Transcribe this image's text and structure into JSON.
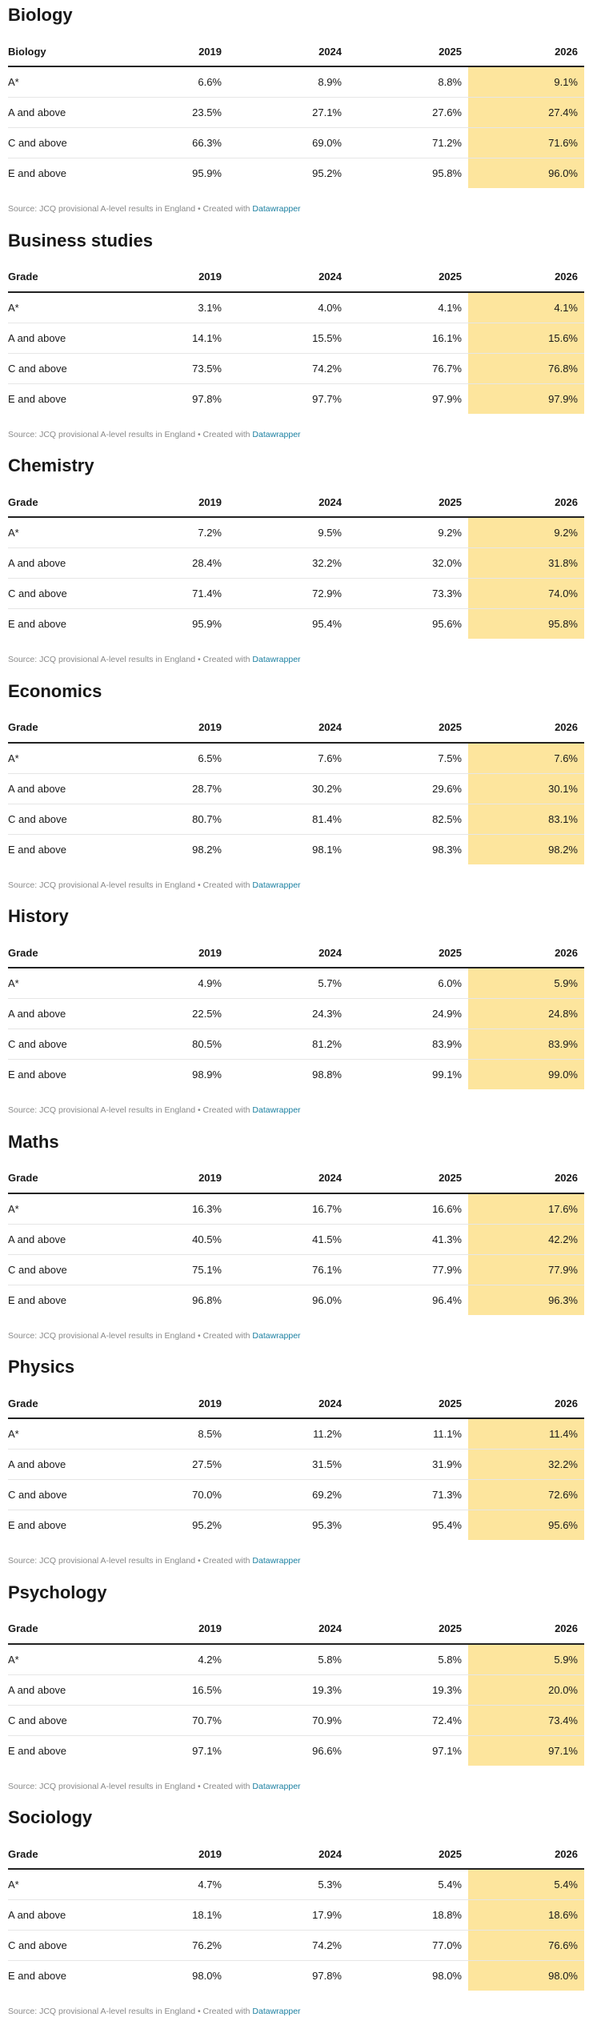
{
  "years": [
    "2019",
    "2024",
    "2025",
    "2026"
  ],
  "highlight_color": "#fde59d",
  "link_color": "#1d81a2",
  "footer": {
    "source": "Source: JCQ provisional A-level results in England",
    "created": "• Created with",
    "link": "Datawrapper"
  },
  "tables": [
    {
      "subject": "Biology",
      "header": "Biology",
      "rows": [
        {
          "grade": "A*",
          "values": [
            "6.6%",
            "8.9%",
            "8.8%",
            "9.1%"
          ]
        },
        {
          "grade": "A and above",
          "values": [
            "23.5%",
            "27.1%",
            "27.6%",
            "27.4%"
          ]
        },
        {
          "grade": "C and above",
          "values": [
            "66.3%",
            "69.0%",
            "71.2%",
            "71.6%"
          ]
        },
        {
          "grade": "E and above",
          "values": [
            "95.9%",
            "95.2%",
            "95.8%",
            "96.0%"
          ]
        }
      ]
    },
    {
      "subject": "Business studies",
      "header": "Grade",
      "rows": [
        {
          "grade": "A*",
          "values": [
            "3.1%",
            "4.0%",
            "4.1%",
            "4.1%"
          ]
        },
        {
          "grade": "A and above",
          "values": [
            "14.1%",
            "15.5%",
            "16.1%",
            "15.6%"
          ]
        },
        {
          "grade": "C and above",
          "values": [
            "73.5%",
            "74.2%",
            "76.7%",
            "76.8%"
          ]
        },
        {
          "grade": "E and above",
          "values": [
            "97.8%",
            "97.7%",
            "97.9%",
            "97.9%"
          ]
        }
      ]
    },
    {
      "subject": "Chemistry",
      "header": "Grade",
      "rows": [
        {
          "grade": "A*",
          "values": [
            "7.2%",
            "9.5%",
            "9.2%",
            "9.2%"
          ]
        },
        {
          "grade": "A and above",
          "values": [
            "28.4%",
            "32.2%",
            "32.0%",
            "31.8%"
          ]
        },
        {
          "grade": "C and above",
          "values": [
            "71.4%",
            "72.9%",
            "73.3%",
            "74.0%"
          ]
        },
        {
          "grade": "E and above",
          "values": [
            "95.9%",
            "95.4%",
            "95.6%",
            "95.8%"
          ]
        }
      ]
    },
    {
      "subject": "Economics",
      "header": "Grade",
      "rows": [
        {
          "grade": "A*",
          "values": [
            "6.5%",
            "7.6%",
            "7.5%",
            "7.6%"
          ]
        },
        {
          "grade": "A and above",
          "values": [
            "28.7%",
            "30.2%",
            "29.6%",
            "30.1%"
          ]
        },
        {
          "grade": "C and above",
          "values": [
            "80.7%",
            "81.4%",
            "82.5%",
            "83.1%"
          ]
        },
        {
          "grade": "E and above",
          "values": [
            "98.2%",
            "98.1%",
            "98.3%",
            "98.2%"
          ]
        }
      ]
    },
    {
      "subject": "History",
      "header": "Grade",
      "rows": [
        {
          "grade": "A*",
          "values": [
            "4.9%",
            "5.7%",
            "6.0%",
            "5.9%"
          ]
        },
        {
          "grade": "A and above",
          "values": [
            "22.5%",
            "24.3%",
            "24.9%",
            "24.8%"
          ]
        },
        {
          "grade": "C and above",
          "values": [
            "80.5%",
            "81.2%",
            "83.9%",
            "83.9%"
          ]
        },
        {
          "grade": "E and above",
          "values": [
            "98.9%",
            "98.8%",
            "99.1%",
            "99.0%"
          ]
        }
      ]
    },
    {
      "subject": "Maths",
      "header": "Grade",
      "rows": [
        {
          "grade": "A*",
          "values": [
            "16.3%",
            "16.7%",
            "16.6%",
            "17.6%"
          ]
        },
        {
          "grade": "A and above",
          "values": [
            "40.5%",
            "41.5%",
            "41.3%",
            "42.2%"
          ]
        },
        {
          "grade": "C and above",
          "values": [
            "75.1%",
            "76.1%",
            "77.9%",
            "77.9%"
          ]
        },
        {
          "grade": "E and above",
          "values": [
            "96.8%",
            "96.0%",
            "96.4%",
            "96.3%"
          ]
        }
      ]
    },
    {
      "subject": "Physics",
      "header": "Grade",
      "rows": [
        {
          "grade": "A*",
          "values": [
            "8.5%",
            "11.2%",
            "11.1%",
            "11.4%"
          ]
        },
        {
          "grade": "A and above",
          "values": [
            "27.5%",
            "31.5%",
            "31.9%",
            "32.2%"
          ]
        },
        {
          "grade": "C and above",
          "values": [
            "70.0%",
            "69.2%",
            "71.3%",
            "72.6%"
          ]
        },
        {
          "grade": "E and above",
          "values": [
            "95.2%",
            "95.3%",
            "95.4%",
            "95.6%"
          ]
        }
      ]
    },
    {
      "subject": "Psychology",
      "header": "Grade",
      "rows": [
        {
          "grade": "A*",
          "values": [
            "4.2%",
            "5.8%",
            "5.8%",
            "5.9%"
          ]
        },
        {
          "grade": "A and above",
          "values": [
            "16.5%",
            "19.3%",
            "19.3%",
            "20.0%"
          ]
        },
        {
          "grade": "C and above",
          "values": [
            "70.7%",
            "70.9%",
            "72.4%",
            "73.4%"
          ]
        },
        {
          "grade": "E and above",
          "values": [
            "97.1%",
            "96.6%",
            "97.1%",
            "97.1%"
          ]
        }
      ]
    },
    {
      "subject": "Sociology",
      "header": "Grade",
      "rows": [
        {
          "grade": "A*",
          "values": [
            "4.7%",
            "5.3%",
            "5.4%",
            "5.4%"
          ]
        },
        {
          "grade": "A and above",
          "values": [
            "18.1%",
            "17.9%",
            "18.8%",
            "18.6%"
          ]
        },
        {
          "grade": "C and above",
          "values": [
            "76.2%",
            "74.2%",
            "77.0%",
            "76.6%"
          ]
        },
        {
          "grade": "E and above",
          "values": [
            "98.0%",
            "97.8%",
            "98.0%",
            "98.0%"
          ]
        }
      ]
    }
  ]
}
